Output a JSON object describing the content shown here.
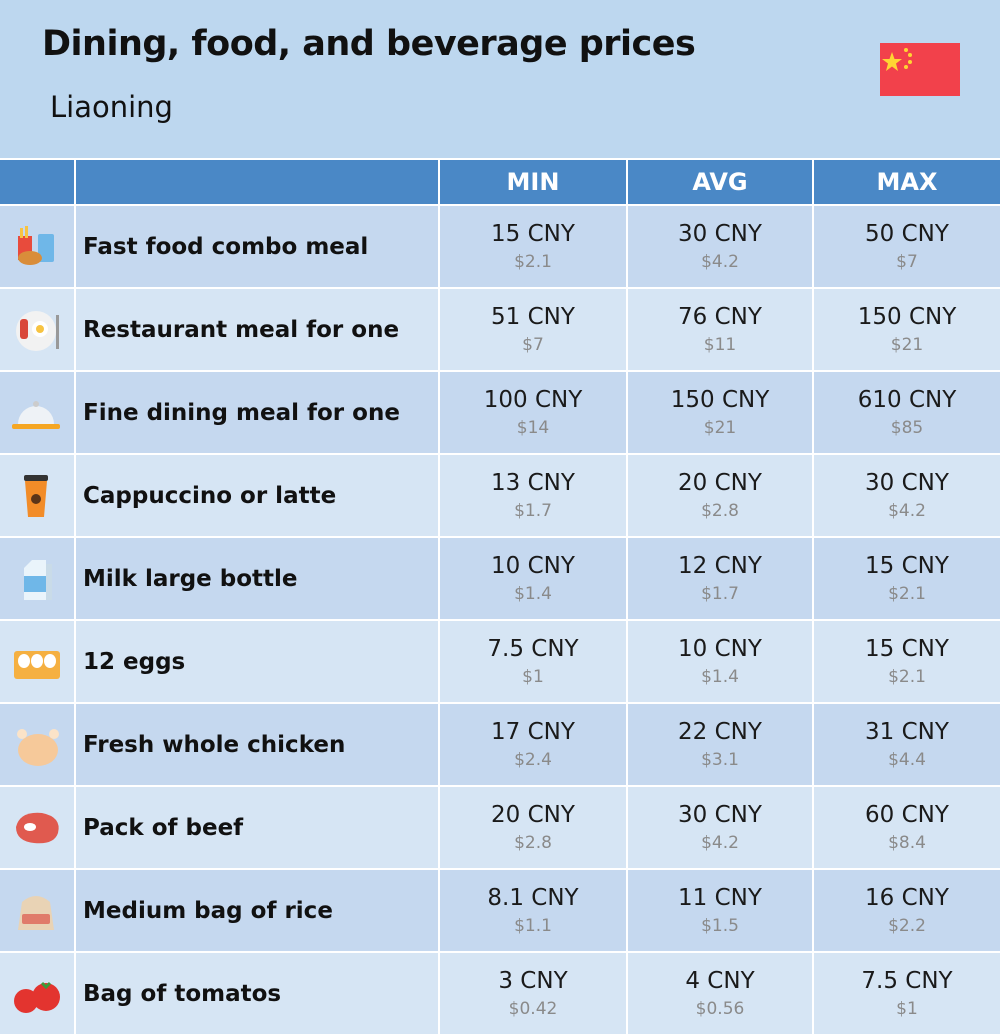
{
  "header": {
    "title": "Dining, food, and beverage prices",
    "subtitle": "Liaoning"
  },
  "table": {
    "columns": [
      "MIN",
      "AVG",
      "MAX"
    ],
    "rows": [
      {
        "label": "Fast food combo meal",
        "cells": [
          {
            "price": "15 CNY",
            "usd": "$2.1"
          },
          {
            "price": "30 CNY",
            "usd": "$4.2"
          },
          {
            "price": "50 CNY",
            "usd": "$7"
          }
        ]
      },
      {
        "label": "Restaurant meal for one",
        "cells": [
          {
            "price": "51 CNY",
            "usd": "$7"
          },
          {
            "price": "76 CNY",
            "usd": "$11"
          },
          {
            "price": "150 CNY",
            "usd": "$21"
          }
        ]
      },
      {
        "label": "Fine dining meal for one",
        "cells": [
          {
            "price": "100 CNY",
            "usd": "$14"
          },
          {
            "price": "150 CNY",
            "usd": "$21"
          },
          {
            "price": "610 CNY",
            "usd": "$85"
          }
        ]
      },
      {
        "label": "Cappuccino or latte",
        "cells": [
          {
            "price": "13 CNY",
            "usd": "$1.7"
          },
          {
            "price": "20 CNY",
            "usd": "$2.8"
          },
          {
            "price": "30 CNY",
            "usd": "$4.2"
          }
        ]
      },
      {
        "label": "Milk large bottle",
        "cells": [
          {
            "price": "10 CNY",
            "usd": "$1.4"
          },
          {
            "price": "12 CNY",
            "usd": "$1.7"
          },
          {
            "price": "15 CNY",
            "usd": "$2.1"
          }
        ]
      },
      {
        "label": "12 eggs",
        "cells": [
          {
            "price": "7.5 CNY",
            "usd": "$1"
          },
          {
            "price": "10 CNY",
            "usd": "$1.4"
          },
          {
            "price": "15 CNY",
            "usd": "$2.1"
          }
        ]
      },
      {
        "label": "Fresh whole chicken",
        "cells": [
          {
            "price": "17 CNY",
            "usd": "$2.4"
          },
          {
            "price": "22 CNY",
            "usd": "$3.1"
          },
          {
            "price": "31 CNY",
            "usd": "$4.4"
          }
        ]
      },
      {
        "label": "Pack of beef",
        "cells": [
          {
            "price": "20 CNY",
            "usd": "$2.8"
          },
          {
            "price": "30 CNY",
            "usd": "$4.2"
          },
          {
            "price": "60 CNY",
            "usd": "$8.4"
          }
        ]
      },
      {
        "label": "Medium bag of rice",
        "cells": [
          {
            "price": "8.1 CNY",
            "usd": "$1.1"
          },
          {
            "price": "11 CNY",
            "usd": "$1.5"
          },
          {
            "price": "16 CNY",
            "usd": "$2.2"
          }
        ]
      },
      {
        "label": "Bag of tomatos",
        "cells": [
          {
            "price": "3 CNY",
            "usd": "$0.42"
          },
          {
            "price": "4 CNY",
            "usd": "$0.56"
          },
          {
            "price": "7.5 CNY",
            "usd": "$1"
          }
        ]
      }
    ]
  }
}
